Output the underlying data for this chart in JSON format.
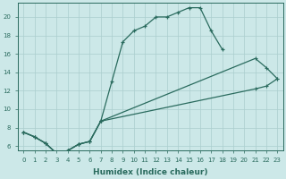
{
  "xlabel": "Humidex (Indice chaleur)",
  "xlim": [
    -0.5,
    23.5
  ],
  "ylim": [
    5.5,
    21.5
  ],
  "xticks": [
    0,
    1,
    2,
    3,
    4,
    5,
    6,
    7,
    8,
    9,
    10,
    11,
    12,
    13,
    14,
    15,
    16,
    17,
    18,
    19,
    20,
    21,
    22,
    23
  ],
  "yticks": [
    6,
    8,
    10,
    12,
    14,
    16,
    18,
    20
  ],
  "background_color": "#cce8e8",
  "line_color": "#2a6b5e",
  "grid_color": "#aacece",
  "line1": {
    "x": [
      0,
      1,
      2,
      3,
      4,
      5,
      6,
      7,
      8,
      9,
      10,
      11,
      12,
      13,
      14,
      15,
      16,
      17,
      18
    ],
    "y": [
      7.5,
      7.0,
      6.3,
      5.2,
      5.5,
      6.2,
      6.5,
      8.7,
      13.0,
      17.3,
      18.5,
      19.0,
      20.0,
      20.0,
      20.5,
      21.0,
      21.0,
      18.5,
      16.5
    ]
  },
  "line2": {
    "x": [
      0,
      1,
      2,
      3,
      4,
      5,
      6,
      7,
      21,
      22,
      23
    ],
    "y": [
      7.5,
      7.0,
      6.3,
      5.2,
      5.5,
      6.2,
      6.5,
      8.7,
      15.5,
      14.5,
      13.3
    ]
  },
  "line3": {
    "x": [
      0,
      1,
      2,
      3,
      4,
      5,
      6,
      7,
      21,
      22,
      23
    ],
    "y": [
      7.5,
      7.0,
      6.3,
      5.2,
      5.5,
      6.2,
      6.5,
      8.7,
      12.2,
      12.5,
      13.3
    ]
  }
}
